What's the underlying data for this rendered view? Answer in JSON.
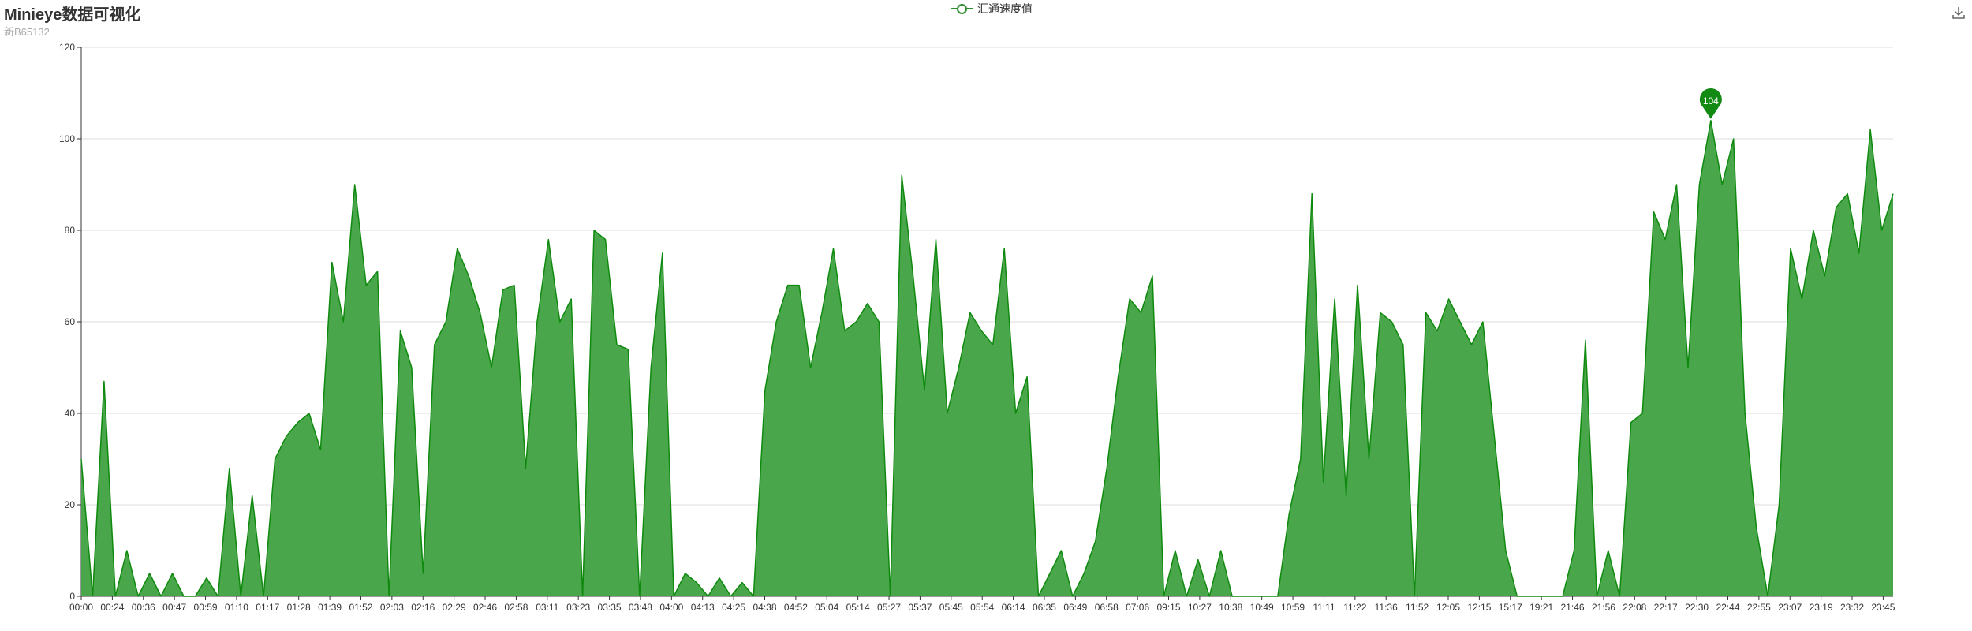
{
  "header": {
    "title": "Minieye数据可视化",
    "subtitle": "新B65132"
  },
  "toolbar": {
    "download_icon": "download-icon"
  },
  "colors": {
    "line": "#0f8a0f",
    "area": "#4aa64a",
    "axis": "#333333",
    "grid": "#dddddd",
    "marker": "#138a13"
  },
  "chart_data": {
    "type": "area",
    "legend": [
      "汇通速度值"
    ],
    "legend_position": "top-center",
    "grid": true,
    "ylim": [
      0,
      120
    ],
    "yticks": [
      0,
      20,
      40,
      60,
      80,
      100,
      120
    ],
    "xlabels": [
      "00:00",
      "00:24",
      "00:36",
      "00:47",
      "00:59",
      "01:10",
      "01:17",
      "01:28",
      "01:39",
      "01:52",
      "02:03",
      "02:16",
      "02:29",
      "02:46",
      "02:58",
      "03:11",
      "03:23",
      "03:35",
      "03:48",
      "04:00",
      "04:13",
      "04:25",
      "04:38",
      "04:52",
      "05:04",
      "05:14",
      "05:27",
      "05:37",
      "05:45",
      "05:54",
      "06:14",
      "06:35",
      "06:49",
      "06:58",
      "07:06",
      "09:15",
      "10:27",
      "10:38",
      "10:49",
      "10:59",
      "11:11",
      "11:22",
      "11:36",
      "11:52",
      "12:05",
      "12:15",
      "15:17",
      "19:21",
      "21:46",
      "21:56",
      "22:08",
      "22:17",
      "22:30",
      "22:44",
      "22:55",
      "23:07",
      "23:19",
      "23:32",
      "23:45"
    ],
    "series": [
      {
        "name": "汇通速度值",
        "max_marker": {
          "label": "104",
          "value": 104
        },
        "values": [
          30,
          0,
          47,
          0,
          10,
          0,
          5,
          0,
          5,
          0,
          0,
          4,
          0,
          28,
          0,
          22,
          0,
          30,
          35,
          38,
          40,
          32,
          73,
          60,
          90,
          68,
          71,
          0,
          58,
          50,
          5,
          55,
          60,
          76,
          70,
          62,
          50,
          67,
          68,
          28,
          60,
          78,
          60,
          65,
          0,
          80,
          78,
          55,
          54,
          0,
          50,
          75,
          0,
          5,
          3,
          0,
          4,
          0,
          3,
          0,
          45,
          60,
          68,
          68,
          50,
          62,
          76,
          58,
          60,
          64,
          60,
          0,
          92,
          70,
          45,
          78,
          40,
          50,
          62,
          58,
          55,
          76,
          40,
          48,
          0,
          5,
          10,
          0,
          5,
          12,
          28,
          48,
          65,
          62,
          70,
          0,
          10,
          0,
          8,
          0,
          10,
          0,
          0,
          0,
          0,
          0,
          18,
          30,
          88,
          25,
          65,
          22,
          68,
          30,
          62,
          60,
          55,
          0,
          62,
          58,
          65,
          60,
          55,
          60,
          35,
          10,
          0,
          0,
          0,
          0,
          0,
          10,
          56,
          0,
          10,
          0,
          38,
          40,
          84,
          78,
          90,
          50,
          90,
          104,
          90,
          100,
          40,
          15,
          0,
          20,
          76,
          65,
          80,
          70,
          85,
          88,
          75,
          102,
          80,
          88
        ]
      }
    ]
  }
}
